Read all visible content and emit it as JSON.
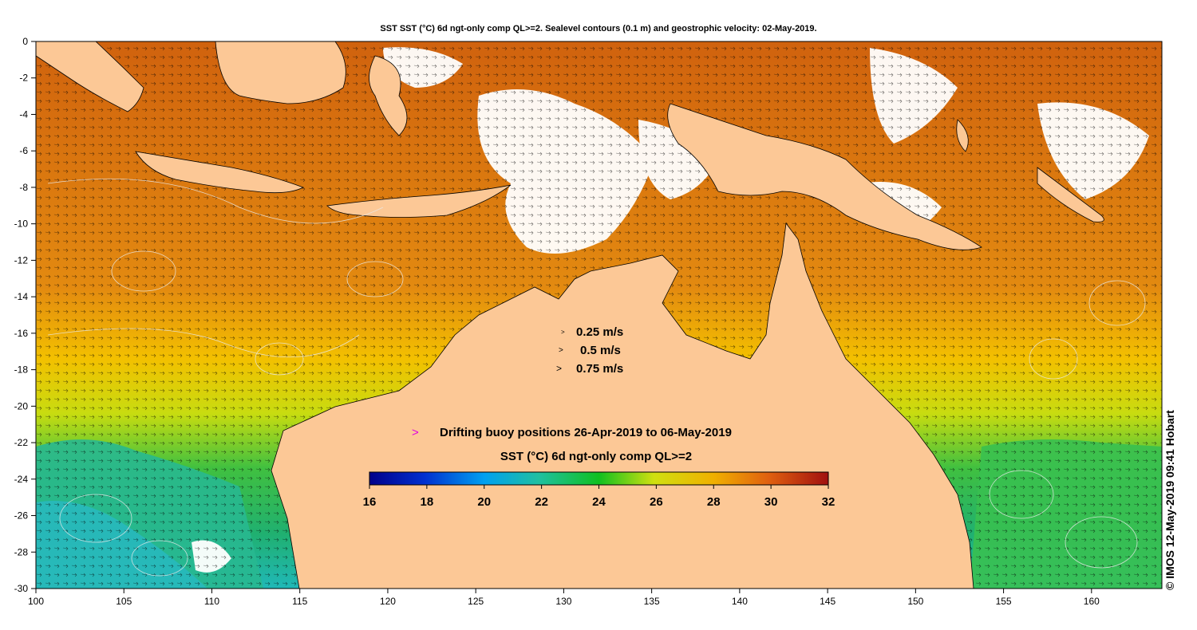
{
  "title": "SST SST (°C) 6d ngt-only comp QL>=2. Sealevel contours (0.1 m) and geostrophic velocity: 02-May-2019.",
  "map": {
    "lon_range": [
      100,
      164
    ],
    "lat_range": [
      -30,
      0
    ],
    "x_ticks": [
      "100",
      "105",
      "110",
      "115",
      "120",
      "125",
      "130",
      "135",
      "140",
      "145",
      "150",
      "155",
      "160"
    ],
    "y_ticks": [
      "0",
      "-2",
      "-4",
      "-6",
      "-8",
      "-10",
      "-12",
      "-14",
      "-16",
      "-18",
      "-20",
      "-22",
      "-24",
      "-26",
      "-28",
      "-30"
    ],
    "land_color": "#fcc896",
    "contour_color": "#e8e8e8"
  },
  "velocity_legend": {
    "items": [
      "0.25 m/s",
      "0.5 m/s",
      "0.75 m/s"
    ]
  },
  "buoy_legend": {
    "marker": ">",
    "marker_color": "#e000e0",
    "text": "Drifting buoy positions 26-Apr-2019 to 06-May-2019"
  },
  "colorbar": {
    "title": "SST (°C) 6d ngt-only comp QL>=2",
    "ticks": [
      "16",
      "18",
      "20",
      "22",
      "24",
      "26",
      "28",
      "30",
      "32"
    ],
    "range": [
      16,
      32
    ]
  },
  "copyright": "© IMOS 12-May-2019 09:41 Hobart"
}
